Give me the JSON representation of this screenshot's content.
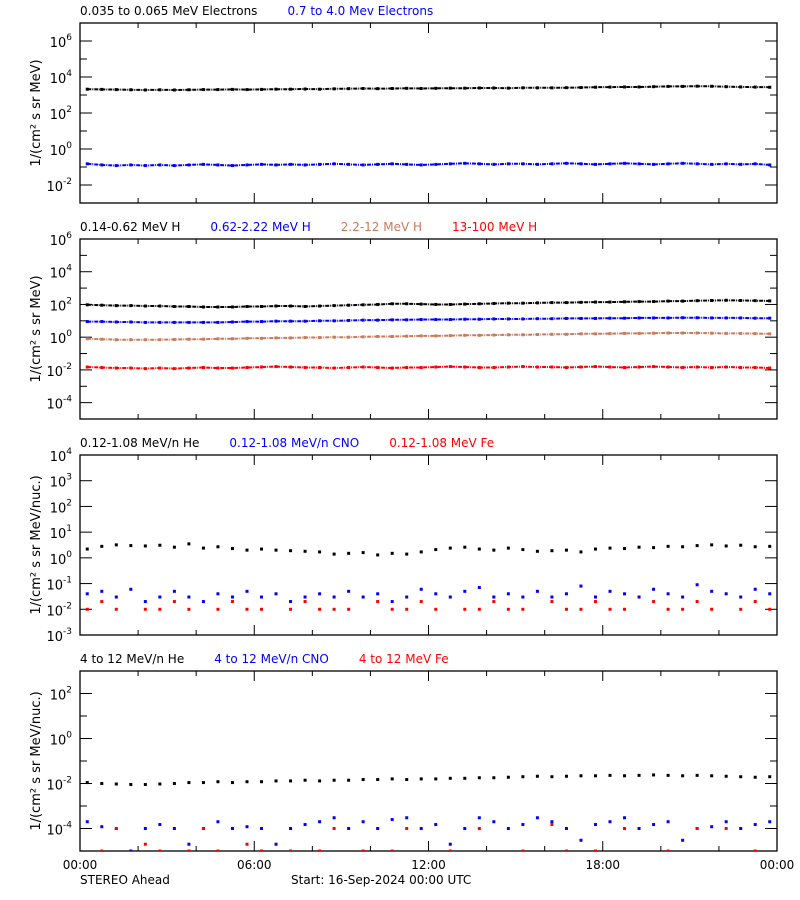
{
  "chart_data": [
    {
      "type": "scatter",
      "ylabel": "1/(cm² s sr MeV)",
      "yscale": "log",
      "ylim": [
        0.001,
        10000000
      ],
      "yticks": [
        "10^6",
        "10^4",
        "10^2",
        "10^0",
        "10^-2"
      ],
      "series": [
        {
          "name": "0.035 to 0.065 MeV Electrons",
          "color": "#000000",
          "values": [
            2100,
            2050,
            2000,
            1950,
            1900,
            1950,
            1900,
            1950,
            2000,
            2000,
            2050,
            2000,
            2050,
            2100,
            2100,
            2150,
            2100,
            2200,
            2250,
            2300,
            2250,
            2300,
            2350,
            2300,
            2350,
            2400,
            2400,
            2450,
            2450,
            2400,
            2500,
            2500,
            2500,
            2550,
            2600,
            2700,
            2750,
            2800,
            2800,
            2900,
            3000,
            3000,
            3100,
            3050,
            2900,
            2800,
            2750,
            2700
          ]
        },
        {
          "name": "0.7 to 4.0 Mev Electrons",
          "color": "#0000ff",
          "values": [
            0.15,
            0.13,
            0.12,
            0.13,
            0.12,
            0.13,
            0.12,
            0.13,
            0.14,
            0.13,
            0.12,
            0.13,
            0.14,
            0.13,
            0.14,
            0.13,
            0.14,
            0.15,
            0.14,
            0.13,
            0.14,
            0.15,
            0.14,
            0.13,
            0.14,
            0.15,
            0.16,
            0.15,
            0.14,
            0.15,
            0.15,
            0.14,
            0.15,
            0.16,
            0.15,
            0.14,
            0.15,
            0.16,
            0.15,
            0.14,
            0.15,
            0.16,
            0.15,
            0.14,
            0.15,
            0.14,
            0.15,
            0.13
          ]
        }
      ]
    },
    {
      "type": "scatter",
      "ylabel": "1/(cm² s sr MeV)",
      "yscale": "log",
      "ylim": [
        1e-05,
        1000000
      ],
      "yticks": [
        "10^6",
        "10^4",
        "10^2",
        "10^0",
        "10^-2",
        "10^-4"
      ],
      "series": [
        {
          "name": "0.14-0.62 MeV H",
          "color": "#000000",
          "values": [
            95,
            90,
            85,
            85,
            80,
            80,
            75,
            75,
            70,
            70,
            70,
            75,
            75,
            80,
            80,
            75,
            80,
            85,
            90,
            95,
            100,
            110,
            110,
            105,
            100,
            100,
            105,
            110,
            115,
            120,
            120,
            125,
            130,
            130,
            135,
            140,
            140,
            145,
            150,
            150,
            160,
            160,
            170,
            175,
            180,
            175,
            170,
            165
          ]
        },
        {
          "name": "0.62-2.22 MeV H",
          "color": "#0000ff",
          "values": [
            9,
            9,
            8.5,
            8.5,
            8,
            8,
            8,
            8,
            8,
            8,
            8.5,
            9,
            9,
            9.5,
            9.5,
            9.5,
            10,
            10,
            10.5,
            11,
            11,
            11.5,
            11.5,
            12,
            12,
            12,
            12.5,
            12.5,
            13,
            13,
            13,
            13.5,
            13.5,
            14,
            14,
            14,
            14.5,
            14.5,
            15,
            15,
            15,
            15.5,
            15.5,
            15,
            15,
            15,
            14.5,
            14.5
          ]
        },
        {
          "name": "2.2-12 MeV H",
          "color": "#c87a5c",
          "values": [
            0.8,
            0.75,
            0.7,
            0.7,
            0.7,
            0.7,
            0.72,
            0.75,
            0.75,
            0.8,
            0.8,
            0.85,
            0.85,
            0.9,
            0.9,
            0.95,
            0.95,
            1.0,
            1.0,
            1.05,
            1.1,
            1.1,
            1.15,
            1.2,
            1.2,
            1.25,
            1.3,
            1.3,
            1.35,
            1.4,
            1.4,
            1.45,
            1.5,
            1.5,
            1.6,
            1.6,
            1.65,
            1.7,
            1.7,
            1.75,
            1.8,
            1.8,
            1.8,
            1.75,
            1.7,
            1.7,
            1.65,
            1.6
          ]
        },
        {
          "name": "13-100 MeV H",
          "color": "#ff0000",
          "values": [
            0.015,
            0.014,
            0.013,
            0.013,
            0.012,
            0.013,
            0.012,
            0.013,
            0.014,
            0.013,
            0.013,
            0.014,
            0.015,
            0.016,
            0.015,
            0.014,
            0.014,
            0.013,
            0.014,
            0.015,
            0.014,
            0.013,
            0.014,
            0.014,
            0.015,
            0.016,
            0.015,
            0.014,
            0.014,
            0.015,
            0.016,
            0.015,
            0.015,
            0.014,
            0.015,
            0.016,
            0.015,
            0.014,
            0.015,
            0.016,
            0.015,
            0.014,
            0.015,
            0.014,
            0.015,
            0.014,
            0.014,
            0.013
          ]
        }
      ]
    },
    {
      "type": "scatter",
      "ylabel": "1/(cm² s sr MeV/nuc.)",
      "yscale": "log",
      "ylim": [
        0.001,
        10000
      ],
      "yticks": [
        "10^4",
        "10^3",
        "10^2",
        "10^1",
        "10^0",
        "10^-1",
        "10^-2",
        "10^-3"
      ],
      "series": [
        {
          "name": "0.12-1.08 MeV/n He",
          "color": "#000000",
          "values": [
            2.2,
            2.8,
            3.2,
            3.0,
            2.9,
            3.1,
            2.6,
            3.5,
            2.4,
            2.7,
            2.3,
            2.0,
            2.2,
            2.0,
            1.9,
            1.8,
            1.7,
            1.4,
            1.5,
            1.6,
            1.3,
            1.5,
            1.4,
            1.7,
            2.1,
            2.4,
            2.6,
            2.2,
            2.0,
            2.4,
            2.1,
            1.8,
            1.9,
            2.0,
            1.7,
            2.2,
            2.4,
            2.3,
            2.6,
            2.5,
            2.8,
            2.7,
            3.0,
            3.2,
            2.9,
            3.1,
            2.7,
            2.8
          ]
        },
        {
          "name": "0.12-1.08 MeV/n CNO",
          "color": "#0000ff",
          "values": [
            0.04,
            0.05,
            0.03,
            0.06,
            0.02,
            0.03,
            0.05,
            0.03,
            0.02,
            0.04,
            0.03,
            0.05,
            0.03,
            0.04,
            0.02,
            0.03,
            0.04,
            0.03,
            0.05,
            0.03,
            0.04,
            0.02,
            0.03,
            0.06,
            0.04,
            0.03,
            0.05,
            0.07,
            0.03,
            0.04,
            0.03,
            0.05,
            0.03,
            0.04,
            0.08,
            0.03,
            0.05,
            0.04,
            0.03,
            0.06,
            0.04,
            0.03,
            0.09,
            0.05,
            0.04,
            0.03,
            0.06,
            0.04
          ]
        },
        {
          "name": "0.12-1.08 MeV Fe",
          "color": "#ff0000",
          "values": [
            0.01,
            0.02,
            0.01,
            null,
            0.01,
            0.01,
            0.02,
            0.01,
            null,
            0.01,
            0.02,
            0.01,
            0.01,
            null,
            0.01,
            0.02,
            0.01,
            0.01,
            0.01,
            null,
            0.02,
            0.01,
            0.01,
            0.02,
            0.01,
            null,
            0.01,
            0.01,
            0.02,
            0.01,
            0.01,
            null,
            0.02,
            0.01,
            0.01,
            0.02,
            0.01,
            0.01,
            null,
            0.02,
            0.01,
            0.01,
            0.02,
            0.01,
            null,
            0.01,
            0.02,
            0.01
          ]
        }
      ]
    },
    {
      "type": "scatter",
      "ylabel": "1/(cm² s sr MeV/nuc.)",
      "yscale": "log",
      "ylim": [
        1e-05,
        1000
      ],
      "yticks": [
        "10^2",
        "10^0",
        "10^-2",
        "10^-4"
      ],
      "series": [
        {
          "name": "4 to 12 MeV/n He",
          "color": "#000000",
          "values": [
            0.011,
            0.01,
            0.0095,
            0.009,
            0.009,
            0.0095,
            0.01,
            0.011,
            0.011,
            0.012,
            0.011,
            0.012,
            0.012,
            0.013,
            0.013,
            0.014,
            0.013,
            0.014,
            0.014,
            0.015,
            0.015,
            0.016,
            0.015,
            0.016,
            0.016,
            0.017,
            0.017,
            0.018,
            0.018,
            0.019,
            0.02,
            0.021,
            0.02,
            0.021,
            0.022,
            0.022,
            0.023,
            0.022,
            0.023,
            0.024,
            0.023,
            0.022,
            0.023,
            0.022,
            0.021,
            0.02,
            0.019,
            0.02
          ]
        },
        {
          "name": "4 to 12 MeV/n CNO",
          "color": "#0000ff",
          "values": [
            0.0002,
            0.00012,
            0.0001,
            1e-05,
            0.0001,
            0.00015,
            0.0001,
            2e-05,
            0.0001,
            0.0002,
            0.0001,
            0.00012,
            0.0001,
            2e-05,
            0.0001,
            0.00015,
            0.0002,
            0.0003,
            0.0001,
            0.0002,
            0.0001,
            0.00025,
            0.0003,
            0.0001,
            0.00015,
            2e-05,
            0.0001,
            0.0003,
            0.0002,
            0.0001,
            0.00015,
            0.0003,
            0.0002,
            0.0001,
            3e-05,
            0.00015,
            0.0002,
            0.0003,
            0.0001,
            0.00015,
            0.0002,
            3e-05,
            0.0001,
            0.00012,
            0.0002,
            0.0001,
            0.00015,
            0.0002
          ]
        },
        {
          "name": "4 to 12 MeV Fe",
          "color": "#ff0000",
          "values": [
            null,
            1e-05,
            0.0001,
            null,
            2e-05,
            1e-05,
            null,
            1e-05,
            0.0001,
            1e-05,
            null,
            2e-05,
            1e-05,
            null,
            1e-05,
            null,
            1e-05,
            0.0001,
            null,
            1e-05,
            null,
            1e-05,
            0.0001,
            null,
            null,
            1e-05,
            null,
            0.0001,
            null,
            null,
            1e-05,
            null,
            0.00015,
            1e-05,
            null,
            1e-05,
            null,
            0.0001,
            null,
            null,
            1e-05,
            null,
            0.0001,
            null,
            0.0001,
            null,
            1e-05,
            null
          ]
        }
      ]
    }
  ],
  "times": [
    "00:15",
    "00:45",
    "01:15",
    "01:45",
    "02:15",
    "02:45",
    "03:15",
    "03:45",
    "04:15",
    "04:45",
    "05:15",
    "05:45",
    "06:15",
    "06:45",
    "07:15",
    "07:45",
    "08:15",
    "08:45",
    "09:15",
    "09:45",
    "10:15",
    "10:45",
    "11:15",
    "11:45",
    "12:15",
    "12:45",
    "13:15",
    "13:45",
    "14:15",
    "14:45",
    "15:15",
    "15:45",
    "16:15",
    "16:45",
    "17:15",
    "17:45",
    "18:15",
    "18:45",
    "19:15",
    "19:45",
    "20:15",
    "20:45",
    "21:15",
    "21:45",
    "22:15",
    "22:45",
    "23:15",
    "23:45"
  ],
  "xticks": [
    "00:00",
    "06:00",
    "12:00",
    "18:00",
    "00:00"
  ],
  "footer": {
    "spacecraft": "STEREO Ahead",
    "start": "Start: 16-Sep-2024 00:00 UTC"
  }
}
